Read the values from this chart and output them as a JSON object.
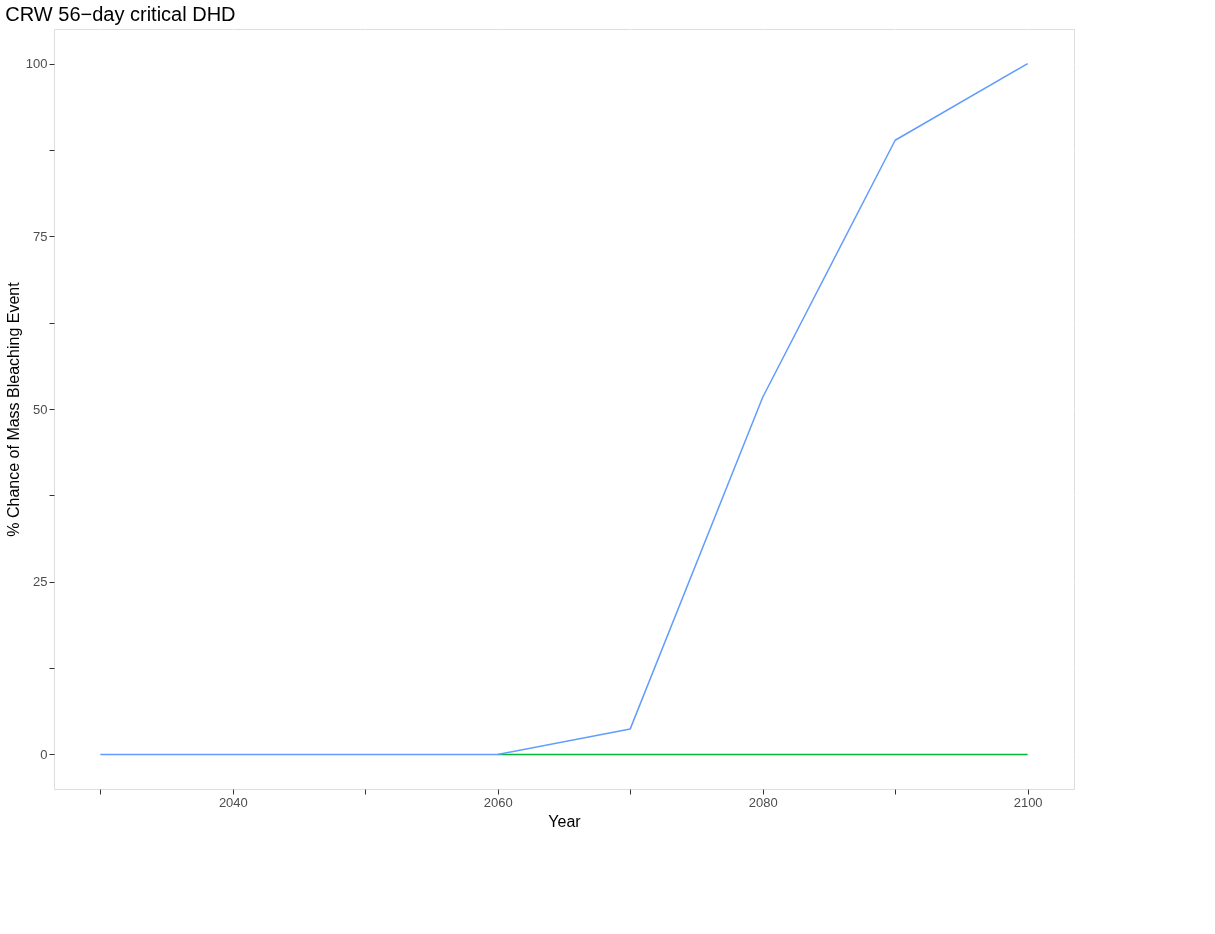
{
  "chart_data": {
    "type": "line",
    "title": "CRW 56−day critical DHD",
    "xlabel": "Year",
    "ylabel": "% Chance of Mass Bleaching Event",
    "series": [
      {
        "color": "#00ba38",
        "x": [
          2060,
          2070,
          2080,
          2090,
          2100
        ],
        "values": [
          0,
          0,
          0,
          0,
          0
        ]
      },
      {
        "color": "#619cff",
        "x": [
          2030,
          2040,
          2050,
          2060,
          2070,
          2080,
          2090,
          2100
        ],
        "values": [
          0,
          0,
          0,
          0,
          3.7,
          51.7,
          88.9,
          100
        ]
      }
    ],
    "xlim": [
      2026.5,
      2103.5
    ],
    "xticks": [
      {
        "value": 2030,
        "label": null
      },
      2040,
      {
        "value": 2050,
        "label": null
      },
      2060,
      {
        "value": 2070,
        "label": null
      },
      2080,
      {
        "value": 2090,
        "label": null
      },
      2100
    ],
    "ylim": [
      -5,
      105
    ],
    "yticks": [
      0,
      {
        "value": 12.5,
        "label": null
      },
      25,
      {
        "value": 37.5,
        "label": null
      },
      50,
      {
        "value": 62.5,
        "label": null
      },
      75,
      {
        "value": 87.5,
        "label": null
      },
      100
    ],
    "grid": true,
    "marker": "none",
    "line_style": "solid"
  }
}
